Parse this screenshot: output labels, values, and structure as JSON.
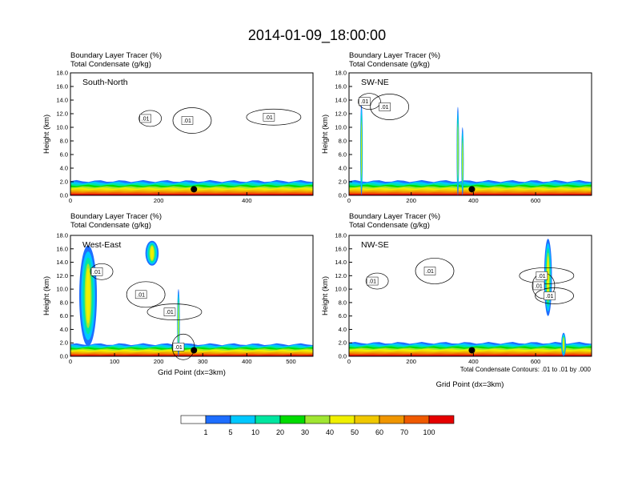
{
  "figure": {
    "title": "2014-01-09_18:00:00",
    "x_axis_label": "Grid Point (dx=3km)",
    "y_axis_label": "Height (km)",
    "field_label_1": "Boundary Layer Tracer   (%)",
    "field_label_2": "Total Condensate   (g/kg)",
    "contour_note": "Total Condensate Contours: .01 to .01 by .000",
    "contour_level_label": ".01"
  },
  "colorbar": {
    "levels": [
      "1",
      "5",
      "10",
      "20",
      "30",
      "40",
      "50",
      "60",
      "70",
      "100"
    ],
    "colors": [
      "#ffffff",
      "#1e6eff",
      "#00c8ff",
      "#00e6a0",
      "#00dc00",
      "#a0e632",
      "#f0f000",
      "#f0c800",
      "#f09600",
      "#f05a00",
      "#e60000"
    ]
  },
  "chart_data": [
    {
      "type": "heatmap",
      "panel_label": "South-North",
      "xlim": [
        0,
        550
      ],
      "ylim": [
        0,
        18
      ],
      "x_ticks": [
        "0",
        "200",
        "400"
      ],
      "x_tick_values": [
        0,
        200,
        400
      ],
      "y_ticks": [
        "0.0",
        "2.0",
        "4.0",
        "6.0",
        "8.0",
        "10.0",
        "12.0",
        "14.0",
        "16.0",
        "18.0"
      ],
      "marker": {
        "x": 280,
        "y": 0.9
      },
      "tracer_top_km": 2.1,
      "contour_labels": [
        {
          "x": 170,
          "y": 11.3
        },
        {
          "x": 265,
          "y": 11.0
        },
        {
          "x": 450,
          "y": 11.5
        }
      ],
      "plumes": []
    },
    {
      "type": "heatmap",
      "panel_label": "SW-NE",
      "xlim": [
        0,
        780
      ],
      "ylim": [
        0,
        18
      ],
      "x_ticks": [
        "0",
        "200",
        "400",
        "600"
      ],
      "x_tick_values": [
        0,
        200,
        400,
        600
      ],
      "y_ticks": [
        "0.0",
        "2.0",
        "4.0",
        "6.0",
        "8.0",
        "10.0",
        "12.0",
        "14.0",
        "16.0",
        "18.0"
      ],
      "marker": {
        "x": 395,
        "y": 0.9
      },
      "tracer_top_km": 2.1,
      "contour_labels": [
        {
          "x": 50,
          "y": 13.8
        },
        {
          "x": 115,
          "y": 13.0
        }
      ],
      "plumes": [
        {
          "x": 40,
          "y0": 0,
          "y1": 13.5,
          "w": 8
        },
        {
          "x": 350,
          "y0": 0,
          "y1": 13.0,
          "w": 6
        },
        {
          "x": 365,
          "y0": 0,
          "y1": 10.0,
          "w": 4
        }
      ]
    },
    {
      "type": "heatmap",
      "panel_label": "West-East",
      "xlim": [
        0,
        550
      ],
      "ylim": [
        0,
        18
      ],
      "x_ticks": [
        "0",
        "100",
        "200",
        "300",
        "400",
        "500"
      ],
      "x_tick_values": [
        0,
        100,
        200,
        300,
        400,
        500
      ],
      "y_ticks": [
        "0.0",
        "2.0",
        "4.0",
        "6.0",
        "8.0",
        "10.0",
        "12.0",
        "14.0",
        "16.0",
        "18.0"
      ],
      "marker": {
        "x": 280,
        "y": 0.9
      },
      "tracer_top_km": 1.8,
      "contour_labels": [
        {
          "x": 60,
          "y": 12.6
        },
        {
          "x": 160,
          "y": 9.2
        },
        {
          "x": 225,
          "y": 6.6
        },
        {
          "x": 245,
          "y": 1.4
        }
      ],
      "plumes": [
        {
          "x": 40,
          "y0": 1.5,
          "y1": 16.5,
          "w": 40
        },
        {
          "x": 185,
          "y0": 13.5,
          "y1": 17.2,
          "w": 30
        },
        {
          "x": 245,
          "y0": 0,
          "y1": 10.0,
          "w": 6
        }
      ]
    },
    {
      "type": "heatmap",
      "panel_label": "NW-SE",
      "xlim": [
        0,
        780
      ],
      "ylim": [
        0,
        18
      ],
      "x_ticks": [
        "0",
        "200",
        "400",
        "600"
      ],
      "x_tick_values": [
        0,
        200,
        400,
        600
      ],
      "y_ticks": [
        "0.0",
        "2.0",
        "4.0",
        "6.0",
        "8.0",
        "10.0",
        "12.0",
        "14.0",
        "16.0",
        "18.0"
      ],
      "marker": {
        "x": 395,
        "y": 0.9
      },
      "tracer_top_km": 2.0,
      "contour_labels": [
        {
          "x": 75,
          "y": 11.2
        },
        {
          "x": 260,
          "y": 12.7
        },
        {
          "x": 620,
          "y": 12.0
        },
        {
          "x": 610,
          "y": 10.5
        },
        {
          "x": 645,
          "y": 9.0
        }
      ],
      "plumes": [
        {
          "x": 640,
          "y0": 6.0,
          "y1": 17.5,
          "w": 25
        },
        {
          "x": 690,
          "y0": 0,
          "y1": 3.5,
          "w": 15
        }
      ]
    }
  ]
}
